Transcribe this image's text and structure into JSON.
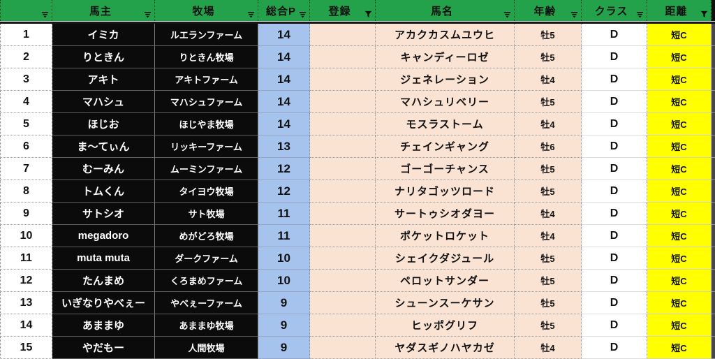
{
  "colors": {
    "header_green": "#23a24b",
    "points_blue": "#a5c3ec",
    "cell_peach": "#fbe3d4",
    "distance_yellow": "#ffff00",
    "owner_cell_black": "#0b0b0b"
  },
  "columns": [
    {
      "label": "",
      "filter": "dropdown"
    },
    {
      "label": "馬主",
      "filter": "dropdown"
    },
    {
      "label": "牧場",
      "filter": "dropdown"
    },
    {
      "label": "総合P",
      "filter": "dropdown"
    },
    {
      "label": "登録",
      "filter": "funnel"
    },
    {
      "label": "馬名",
      "filter": "dropdown"
    },
    {
      "label": "年齢",
      "filter": "dropdown"
    },
    {
      "label": "クラス",
      "filter": "dropdown"
    },
    {
      "label": "距離",
      "filter": "funnel"
    }
  ],
  "rows": [
    {
      "num": "1",
      "owner": "イミカ",
      "farm": "ルエランファーム",
      "points": "14",
      "reg": "",
      "name": "アカクカスムユウヒ",
      "age": "牡5",
      "cls": "D",
      "dist": "短C"
    },
    {
      "num": "2",
      "owner": "りときん",
      "farm": "りときん牧場",
      "points": "14",
      "reg": "",
      "name": "キャンディーロゼ",
      "age": "牡5",
      "cls": "D",
      "dist": "短C"
    },
    {
      "num": "3",
      "owner": "アキト",
      "farm": "アキトファーム",
      "points": "14",
      "reg": "",
      "name": "ジェネレーション",
      "age": "牡4",
      "cls": "D",
      "dist": "短C"
    },
    {
      "num": "4",
      "owner": "マハシュ",
      "farm": "マハシュファーム",
      "points": "14",
      "reg": "",
      "name": "マハシュリベリー",
      "age": "牡5",
      "cls": "D",
      "dist": "短C"
    },
    {
      "num": "5",
      "owner": "ほじお",
      "farm": "ほじやま牧場",
      "points": "14",
      "reg": "",
      "name": "モスラストーム",
      "age": "牡4",
      "cls": "D",
      "dist": "短C"
    },
    {
      "num": "6",
      "owner": "ま〜てぃん",
      "farm": "リッキーファーム",
      "points": "13",
      "reg": "",
      "name": "チェインギャング",
      "age": "牡6",
      "cls": "D",
      "dist": "短C"
    },
    {
      "num": "7",
      "owner": "むーみん",
      "farm": "ムーミンファーム",
      "points": "12",
      "reg": "",
      "name": "ゴーゴーチャンス",
      "age": "牡5",
      "cls": "D",
      "dist": "短C"
    },
    {
      "num": "8",
      "owner": "トムくん",
      "farm": "タイヨウ牧場",
      "points": "12",
      "reg": "",
      "name": "ナリタゴッツロード",
      "age": "牡5",
      "cls": "D",
      "dist": "短C"
    },
    {
      "num": "9",
      "owner": "サトシオ",
      "farm": "サト牧場",
      "points": "11",
      "reg": "",
      "name": "サートゥシオダヨー",
      "age": "牡4",
      "cls": "D",
      "dist": "短C"
    },
    {
      "num": "10",
      "owner": "megadoro",
      "farm": "めがどろ牧場",
      "points": "11",
      "reg": "",
      "name": "ポケットロケット",
      "age": "牡4",
      "cls": "D",
      "dist": "短C"
    },
    {
      "num": "11",
      "owner": "muta muta",
      "farm": "ダークファーム",
      "points": "10",
      "reg": "",
      "name": "シェイクダジュール",
      "age": "牡5",
      "cls": "D",
      "dist": "短C"
    },
    {
      "num": "12",
      "owner": "たんまめ",
      "farm": "くろまめファーム",
      "points": "10",
      "reg": "",
      "name": "ペロットサンダー",
      "age": "牡5",
      "cls": "D",
      "dist": "短C"
    },
    {
      "num": "13",
      "owner": "いぎなりやべぇー",
      "farm": "やべぇーファーム",
      "points": "9",
      "reg": "",
      "name": "シューンスーケサン",
      "age": "牡5",
      "cls": "D",
      "dist": "短C"
    },
    {
      "num": "14",
      "owner": "あままゆ",
      "farm": "あままゆ牧場",
      "points": "9",
      "reg": "",
      "name": "ヒッポグリフ",
      "age": "牡5",
      "cls": "D",
      "dist": "短C"
    },
    {
      "num": "15",
      "owner": "やだもー",
      "farm": "人間牧場",
      "points": "9",
      "reg": "",
      "name": "ヤダスギノハヤカゼ",
      "age": "牡4",
      "cls": "D",
      "dist": "短C"
    }
  ]
}
